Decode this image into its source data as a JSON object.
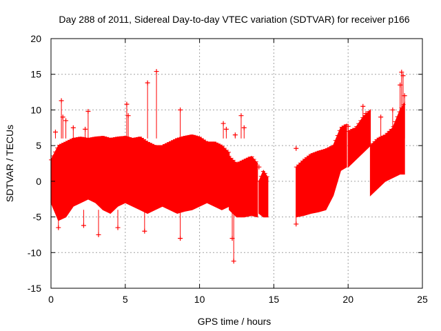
{
  "chart_data": {
    "type": "scatter",
    "title": "Day 288 of 2011, Sidereal Day-to-day VTEC variation (SDTVAR) for receiver p166",
    "xlabel": "GPS time / hours",
    "ylabel": "SDTVAR / TECUs",
    "xlim": [
      0,
      25
    ],
    "ylim": [
      -15,
      20
    ],
    "x_ticks": [
      0,
      5,
      10,
      15,
      20,
      25
    ],
    "x_tick_labels": [
      "0",
      "5",
      "10",
      "15",
      "20",
      "25"
    ],
    "y_ticks": [
      -15,
      -10,
      -5,
      0,
      5,
      10,
      15,
      20
    ],
    "y_tick_labels": [
      "-15",
      "-10",
      "-5",
      "0",
      "5",
      "10",
      "15",
      "20"
    ],
    "grid": true,
    "marker": "+",
    "colors": {
      "series": "#ff0000",
      "grid": "#a0a0a0",
      "axes": "#000000"
    },
    "series": [
      {
        "name": "SDTVAR",
        "band_segments": [
          {
            "x": [
              0.0,
              0.5,
              1.0,
              1.5,
              2.0,
              2.5,
              3.0,
              3.5,
              4.0,
              4.5,
              5.0,
              5.5,
              6.0,
              6.5,
              7.0,
              7.5,
              8.0,
              8.5,
              9.0,
              9.5,
              10.0,
              10.5,
              11.0,
              11.5,
              12.0
            ],
            "upper": [
              3.0,
              5.0,
              5.5,
              6.0,
              6.2,
              6.0,
              6.2,
              6.3,
              6.0,
              6.2,
              6.3,
              6.0,
              6.2,
              5.5,
              5.0,
              5.0,
              5.5,
              6.0,
              6.3,
              6.5,
              6.2,
              5.5,
              5.5,
              5.0,
              4.0
            ],
            "lower": [
              -3.0,
              -5.5,
              -5.0,
              -3.5,
              -3.0,
              -2.5,
              -3.0,
              -4.0,
              -4.5,
              -3.5,
              -3.0,
              -3.5,
              -4.0,
              -4.5,
              -4.0,
              -3.5,
              -4.0,
              -4.5,
              -4.2,
              -4.0,
              -3.5,
              -3.0,
              -3.5,
              -4.0,
              -3.5
            ]
          },
          {
            "x": [
              12.0,
              12.5,
              13.0,
              13.5,
              13.9
            ],
            "upper": [
              3.5,
              2.5,
              3.0,
              3.5,
              2.5
            ],
            "lower": [
              -4.0,
              -5.0,
              -5.0,
              -4.8,
              -5.0
            ]
          },
          {
            "x": [
              14.0,
              14.3,
              14.6
            ],
            "upper": [
              0.0,
              1.5,
              0.5
            ],
            "lower": [
              -4.5,
              -5.0,
              -5.0
            ]
          },
          {
            "x": [
              16.5,
              17.0,
              17.5,
              18.0,
              18.5,
              19.0,
              19.5,
              19.9
            ],
            "upper": [
              2.0,
              3.0,
              3.8,
              4.2,
              4.5,
              5.0,
              7.5,
              8.0
            ],
            "lower": [
              -5.0,
              -4.8,
              -4.5,
              -4.3,
              -4.0,
              -2.0,
              1.5,
              2.0
            ]
          },
          {
            "x": [
              20.0,
              20.5,
              21.0,
              21.5
            ],
            "upper": [
              7.0,
              7.5,
              9.0,
              10.0
            ],
            "lower": [
              2.0,
              3.0,
              4.0,
              5.0
            ]
          },
          {
            "x": [
              21.5,
              22.0,
              22.5,
              23.0,
              23.5,
              23.8
            ],
            "upper": [
              5.0,
              6.0,
              6.5,
              7.5,
              10.0,
              11.0
            ],
            "lower": [
              -2.0,
              -1.0,
              0.0,
              0.5,
              1.0,
              1.0
            ]
          }
        ],
        "outliers": [
          {
            "x": 0.3,
            "y": 6.9
          },
          {
            "x": 0.5,
            "y": -6.5
          },
          {
            "x": 0.7,
            "y": 11.3
          },
          {
            "x": 0.8,
            "y": 9.0
          },
          {
            "x": 1.0,
            "y": 8.5
          },
          {
            "x": 1.5,
            "y": 7.5
          },
          {
            "x": 2.2,
            "y": -6.2
          },
          {
            "x": 2.3,
            "y": 7.3
          },
          {
            "x": 2.5,
            "y": 9.8
          },
          {
            "x": 3.2,
            "y": -7.5
          },
          {
            "x": 4.5,
            "y": -6.5
          },
          {
            "x": 5.1,
            "y": 10.8
          },
          {
            "x": 5.2,
            "y": 9.2
          },
          {
            "x": 6.3,
            "y": -7.0
          },
          {
            "x": 6.5,
            "y": 13.8
          },
          {
            "x": 7.1,
            "y": 15.4
          },
          {
            "x": 8.7,
            "y": -8.0
          },
          {
            "x": 8.7,
            "y": 10.0
          },
          {
            "x": 11.6,
            "y": 8.1
          },
          {
            "x": 11.8,
            "y": 7.3
          },
          {
            "x": 12.2,
            "y": -8.0
          },
          {
            "x": 12.3,
            "y": -11.2
          },
          {
            "x": 12.4,
            "y": 6.5
          },
          {
            "x": 12.8,
            "y": 9.2
          },
          {
            "x": 13.0,
            "y": 7.5
          },
          {
            "x": 14.0,
            "y": 2.0
          },
          {
            "x": 16.5,
            "y": 4.6
          },
          {
            "x": 16.5,
            "y": -6.0
          },
          {
            "x": 20.0,
            "y": 7.7
          },
          {
            "x": 21.0,
            "y": 10.5
          },
          {
            "x": 21.2,
            "y": 9.5
          },
          {
            "x": 22.2,
            "y": 9.0
          },
          {
            "x": 23.0,
            "y": 10.0
          },
          {
            "x": 23.5,
            "y": 13.5
          },
          {
            "x": 23.6,
            "y": 15.3
          },
          {
            "x": 23.7,
            "y": 14.8
          },
          {
            "x": 23.8,
            "y": 12.0
          }
        ]
      }
    ]
  }
}
